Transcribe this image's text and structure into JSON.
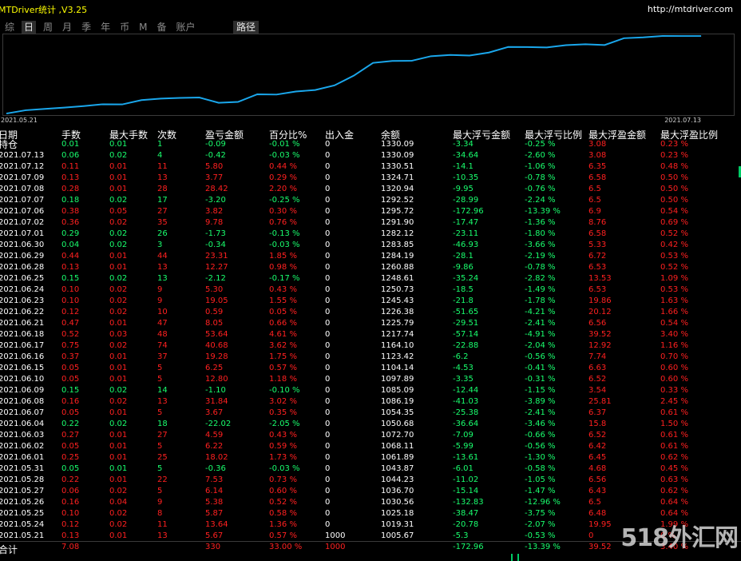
{
  "app": {
    "title": "MTDriver统计 ,V3.25",
    "url": "http://mtdriver.com"
  },
  "tabs": [
    {
      "label": "综",
      "active": false
    },
    {
      "label": "日",
      "active": true
    },
    {
      "label": "周",
      "active": false
    },
    {
      "label": "月",
      "active": false
    },
    {
      "label": "季",
      "active": false
    },
    {
      "label": "年",
      "active": false
    },
    {
      "label": "币",
      "active": false
    },
    {
      "label": "M",
      "active": false
    },
    {
      "label": "备",
      "active": false
    },
    {
      "label": "账户",
      "active": false
    }
  ],
  "route_tab": "路径",
  "chart_data": {
    "type": "line",
    "x_start": "2021.05.21",
    "x_end": "2021.07.13",
    "line_color": "#1aa7ec",
    "values": [
      1005.67,
      1019.31,
      1025.18,
      1030.56,
      1036.7,
      1044.23,
      1043.87,
      1061.89,
      1068.11,
      1070.96,
      1072.7,
      1050.68,
      1054.35,
      1086.19,
      1085.09,
      1097.89,
      1104.14,
      1123.42,
      1164.1,
      1217.74,
      1225.79,
      1226.38,
      1245.43,
      1250.73,
      1248.61,
      1260.88,
      1284.19,
      1283.85,
      1282.12,
      1291.9,
      1295.72,
      1292.52,
      1320.94,
      1324.71,
      1330.51,
      1330.09,
      1330.09
    ]
  },
  "table": {
    "headers": [
      "日期",
      "手数",
      "最大手数",
      "次数",
      "盈亏金额",
      "百分比%",
      "出入金",
      "余额",
      "最大浮亏金额",
      "最大浮亏比例",
      "最大浮盈金额",
      "最大浮盈比例"
    ],
    "rows": [
      [
        "持仓",
        "0.01",
        "0.01",
        "1",
        "-0.09",
        "-0.01 %",
        "0",
        "1330.09",
        "-3.34",
        "-0.25 %",
        "3.08",
        "0.23 %"
      ],
      [
        "2021.07.13",
        "0.06",
        "0.02",
        "4",
        "-0.42",
        "-0.03 %",
        "0",
        "1330.09",
        "-34.64",
        "-2.60 %",
        "3.08",
        "0.23 %"
      ],
      [
        "2021.07.12",
        "0.11",
        "0.01",
        "11",
        "5.80",
        "0.44 %",
        "0",
        "1330.51",
        "-14.1",
        "-1.06 %",
        "6.35",
        "0.48 %"
      ],
      [
        "2021.07.09",
        "0.13",
        "0.01",
        "13",
        "3.77",
        "0.29 %",
        "0",
        "1324.71",
        "-10.35",
        "-0.78 %",
        "6.58",
        "0.50 %"
      ],
      [
        "2021.07.08",
        "0.28",
        "0.01",
        "28",
        "28.42",
        "2.20 %",
        "0",
        "1320.94",
        "-9.95",
        "-0.76 %",
        "6.5",
        "0.50 %"
      ],
      [
        "2021.07.07",
        "0.18",
        "0.02",
        "17",
        "-3.20",
        "-0.25 %",
        "0",
        "1292.52",
        "-28.99",
        "-2.24 %",
        "6.5",
        "0.50 %"
      ],
      [
        "2021.07.06",
        "0.38",
        "0.05",
        "27",
        "3.82",
        "0.30 %",
        "0",
        "1295.72",
        "-172.96",
        "-13.39 %",
        "6.9",
        "0.54 %"
      ],
      [
        "2021.07.02",
        "0.36",
        "0.02",
        "35",
        "9.78",
        "0.76 %",
        "0",
        "1291.90",
        "-17.47",
        "-1.36 %",
        "8.76",
        "0.69 %"
      ],
      [
        "2021.07.01",
        "0.29",
        "0.02",
        "26",
        "-1.73",
        "-0.13 %",
        "0",
        "1282.12",
        "-23.11",
        "-1.80 %",
        "6.58",
        "0.52 %"
      ],
      [
        "2021.06.30",
        "0.04",
        "0.02",
        "3",
        "-0.34",
        "-0.03 %",
        "0",
        "1283.85",
        "-46.93",
        "-3.66 %",
        "5.33",
        "0.42 %"
      ],
      [
        "2021.06.29",
        "0.44",
        "0.01",
        "44",
        "23.31",
        "1.85 %",
        "0",
        "1284.19",
        "-28.1",
        "-2.19 %",
        "6.72",
        "0.53 %"
      ],
      [
        "2021.06.28",
        "0.13",
        "0.01",
        "13",
        "12.27",
        "0.98 %",
        "0",
        "1260.88",
        "-9.86",
        "-0.78 %",
        "6.53",
        "0.52 %"
      ],
      [
        "2021.06.25",
        "0.15",
        "0.02",
        "13",
        "-2.12",
        "-0.17 %",
        "0",
        "1248.61",
        "-35.24",
        "-2.82 %",
        "13.53",
        "1.09 %"
      ],
      [
        "2021.06.24",
        "0.10",
        "0.02",
        "9",
        "5.30",
        "0.43 %",
        "0",
        "1250.73",
        "-18.5",
        "-1.49 %",
        "6.53",
        "0.53 %"
      ],
      [
        "2021.06.23",
        "0.10",
        "0.02",
        "9",
        "19.05",
        "1.55 %",
        "0",
        "1245.43",
        "-21.8",
        "-1.78 %",
        "19.86",
        "1.63 %"
      ],
      [
        "2021.06.22",
        "0.12",
        "0.02",
        "10",
        "0.59",
        "0.05 %",
        "0",
        "1226.38",
        "-51.65",
        "-4.21 %",
        "20.12",
        "1.66 %"
      ],
      [
        "2021.06.21",
        "0.47",
        "0.01",
        "47",
        "8.05",
        "0.66 %",
        "0",
        "1225.79",
        "-29.51",
        "-2.41 %",
        "6.56",
        "0.54 %"
      ],
      [
        "2021.06.18",
        "0.52",
        "0.03",
        "48",
        "53.64",
        "4.61 %",
        "0",
        "1217.74",
        "-57.14",
        "-4.91 %",
        "39.52",
        "3.40 %"
      ],
      [
        "2021.06.17",
        "0.75",
        "0.02",
        "74",
        "40.68",
        "3.62 %",
        "0",
        "1164.10",
        "-22.88",
        "-2.04 %",
        "12.92",
        "1.16 %"
      ],
      [
        "2021.06.16",
        "0.37",
        "0.01",
        "37",
        "19.28",
        "1.75 %",
        "0",
        "1123.42",
        "-6.2",
        "-0.56 %",
        "7.74",
        "0.70 %"
      ],
      [
        "2021.06.15",
        "0.05",
        "0.01",
        "5",
        "6.25",
        "0.57 %",
        "0",
        "1104.14",
        "-4.53",
        "-0.41 %",
        "6.63",
        "0.60 %"
      ],
      [
        "2021.06.10",
        "0.05",
        "0.01",
        "5",
        "12.80",
        "1.18 %",
        "0",
        "1097.89",
        "-3.35",
        "-0.31 %",
        "6.52",
        "0.60 %"
      ],
      [
        "2021.06.09",
        "0.15",
        "0.02",
        "14",
        "-1.10",
        "-0.10 %",
        "0",
        "1085.09",
        "-12.44",
        "-1.15 %",
        "3.54",
        "0.33 %"
      ],
      [
        "2021.06.08",
        "0.16",
        "0.02",
        "13",
        "31.84",
        "3.02 %",
        "0",
        "1086.19",
        "-41.03",
        "-3.89 %",
        "25.81",
        "2.45 %"
      ],
      [
        "2021.06.07",
        "0.05",
        "0.01",
        "5",
        "3.67",
        "0.35 %",
        "0",
        "1054.35",
        "-25.38",
        "-2.41 %",
        "6.37",
        "0.61 %"
      ],
      [
        "2021.06.04",
        "0.22",
        "0.02",
        "18",
        "-22.02",
        "-2.05 %",
        "0",
        "1050.68",
        "-36.64",
        "-3.46 %",
        "15.8",
        "1.50 %"
      ],
      [
        "2021.06.03",
        "0.27",
        "0.01",
        "27",
        "4.59",
        "0.43 %",
        "0",
        "1072.70",
        "-7.09",
        "-0.66 %",
        "6.52",
        "0.61 %"
      ],
      [
        "2021.06.02",
        "0.05",
        "0.01",
        "5",
        "6.22",
        "0.59 %",
        "0",
        "1068.11",
        "-5.99",
        "-0.56 %",
        "6.42",
        "0.61 %"
      ],
      [
        "2021.06.01",
        "0.25",
        "0.01",
        "25",
        "18.02",
        "1.73 %",
        "0",
        "1061.89",
        "-13.61",
        "-1.30 %",
        "6.45",
        "0.62 %"
      ],
      [
        "2021.05.31",
        "0.05",
        "0.01",
        "5",
        "-0.36",
        "-0.03 %",
        "0",
        "1043.87",
        "-6.01",
        "-0.58 %",
        "4.68",
        "0.45 %"
      ],
      [
        "2021.05.28",
        "0.22",
        "0.01",
        "22",
        "7.53",
        "0.73 %",
        "0",
        "1044.23",
        "-11.02",
        "-1.05 %",
        "6.56",
        "0.63 %"
      ],
      [
        "2021.05.27",
        "0.06",
        "0.02",
        "5",
        "6.14",
        "0.60 %",
        "0",
        "1036.70",
        "-15.14",
        "-1.47 %",
        "6.43",
        "0.62 %"
      ],
      [
        "2021.05.26",
        "0.16",
        "0.04",
        "9",
        "5.38",
        "0.52 %",
        "0",
        "1030.56",
        "-132.83",
        "-12.96 %",
        "6.5",
        "0.64 %"
      ],
      [
        "2021.05.25",
        "0.10",
        "0.02",
        "8",
        "5.87",
        "0.58 %",
        "0",
        "1025.18",
        "-38.47",
        "-3.75 %",
        "6.48",
        "0.64 %"
      ],
      [
        "2021.05.24",
        "0.12",
        "0.02",
        "11",
        "13.64",
        "1.36 %",
        "0",
        "1019.31",
        "-20.78",
        "-2.07 %",
        "19.95",
        "1.99 %"
      ],
      [
        "2021.05.21",
        "0.13",
        "0.01",
        "13",
        "5.67",
        "0.57 %",
        "1000",
        "1005.67",
        "-5.3",
        "-0.53 %",
        "0",
        "0 %"
      ]
    ],
    "total": [
      "合计",
      "7.08",
      "",
      "",
      "330",
      "33.00 %",
      "1000",
      "",
      "-172.96",
      "-13.39 %",
      "39.52",
      "3.40 %"
    ]
  },
  "watermark": "518外汇网"
}
